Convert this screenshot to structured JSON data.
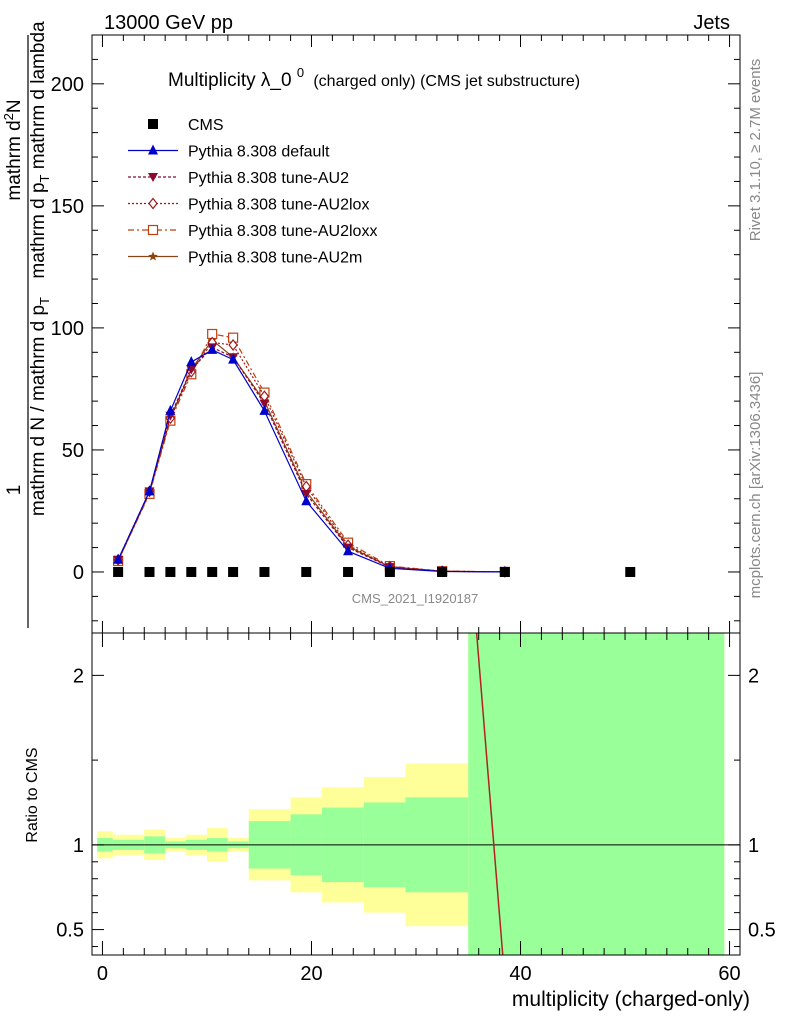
{
  "header": {
    "left": "13000 GeV pp",
    "right": "Jets",
    "rivet": "Rivet 3.1.10, ≥ 2.7M events",
    "mcplots": "mcplots.cern.ch [arXiv:1306.3436]",
    "watermark": "CMS_2021_I1920187"
  },
  "title": {
    "main": "Multiplicity λ_0",
    "sup": "0",
    "suffix": "(charged only) (CMS jet substructure)"
  },
  "ylabel_main": {
    "frac_num": "1",
    "frac_den_prefix": "mathrm d N / mathrm d p",
    "frac_den_sub": "T",
    "num_line1": "mathrm d",
    "num_sup": "2",
    "num_line1b": "N",
    "den_line2": "mathrm d p",
    "den_line2_sub": "T",
    "den_line2_rest": " mathrm d lambda"
  },
  "ylabel_ratio": "Ratio to CMS",
  "xlabel": "multiplicity (charged-only)",
  "legend": [
    {
      "label": "CMS",
      "marker": "square-filled",
      "color": "#000000",
      "dash": ""
    },
    {
      "label": "Pythia 8.308 default",
      "marker": "triangle-up-filled",
      "color": "#0000cc",
      "dash": ""
    },
    {
      "label": "Pythia 8.308 tune-AU2",
      "marker": "triangle-down-filled",
      "color": "#8b0a2e",
      "dash": "3,2"
    },
    {
      "label": "Pythia 8.308 tune-AU2lox",
      "marker": "diamond-open",
      "color": "#a01818",
      "dash": "2,2"
    },
    {
      "label": "Pythia 8.308 tune-AU2loxx",
      "marker": "square-open",
      "color": "#c04010",
      "dash": "6,3,2,3"
    },
    {
      "label": "Pythia 8.308 tune-AU2m",
      "marker": "star",
      "color": "#8b4513",
      "dash": ""
    }
  ],
  "chart_data": {
    "type": "line",
    "main": {
      "xlim": [
        -1,
        61
      ],
      "ylim": [
        -25,
        220
      ],
      "yticks": [
        0,
        50,
        100,
        150,
        200
      ],
      "ytick_labels": [
        "0",
        "50",
        "100",
        "150",
        "200"
      ]
    },
    "ratio": {
      "ylim": [
        0.35,
        2.25
      ],
      "yticks": [
        0.5,
        1,
        2
      ],
      "ytick_labels": [
        "0.5",
        "1",
        "2"
      ],
      "xticks": [
        0,
        20,
        40,
        60
      ],
      "xtick_labels": [
        "0",
        "20",
        "40",
        "60"
      ]
    },
    "x": [
      1.5,
      4.5,
      6.5,
      8.5,
      10.5,
      12.5,
      15.5,
      19.5,
      23.5,
      27.5,
      32.5,
      38.5,
      50.5
    ],
    "series": [
      {
        "name": "CMS",
        "values": [
          0,
          0,
          0,
          0,
          0,
          0,
          0,
          0,
          0,
          0,
          0,
          0,
          0
        ]
      },
      {
        "name": "Pythia 8.308 default",
        "values": [
          5,
          33,
          66,
          86,
          91,
          87,
          66,
          29,
          8.5,
          1.5,
          0.2,
          0.02,
          null
        ]
      },
      {
        "name": "Pythia 8.308 tune-AU2",
        "values": [
          5,
          33,
          64,
          83,
          92,
          88,
          69,
          32,
          10,
          2.0,
          0.3,
          0.03,
          null
        ]
      },
      {
        "name": "Pythia 8.308 tune-AU2lox",
        "values": [
          5,
          33,
          63,
          82,
          94,
          93,
          72,
          35,
          11,
          2.2,
          0.3,
          0.03,
          null
        ]
      },
      {
        "name": "Pythia 8.308 tune-AU2loxx",
        "values": [
          4.5,
          32,
          62,
          81,
          97.5,
          96,
          73.5,
          36,
          12,
          2.4,
          0.35,
          0.04,
          null
        ]
      },
      {
        "name": "Pythia 8.308 tune-AU2m",
        "values": [
          4.5,
          32.5,
          63,
          83,
          95,
          88,
          70,
          33,
          10.5,
          2.1,
          0.3,
          0.03,
          null
        ]
      }
    ],
    "ratio_bands": {
      "edges": [
        -0.5,
        1,
        4,
        6,
        8,
        10,
        12,
        14,
        18,
        21,
        25,
        29,
        35,
        59.5
      ],
      "inner_lo": [
        0.96,
        0.97,
        0.95,
        0.98,
        0.97,
        0.96,
        0.98,
        0.86,
        0.82,
        0.78,
        0.75,
        0.72,
        0.35
      ],
      "inner_hi": [
        1.04,
        1.03,
        1.05,
        1.02,
        1.03,
        1.04,
        1.02,
        1.14,
        1.18,
        1.22,
        1.25,
        1.28,
        2.25
      ],
      "outer_lo": [
        0.92,
        0.94,
        0.91,
        0.96,
        0.94,
        0.9,
        0.96,
        0.79,
        0.72,
        0.66,
        0.6,
        0.52,
        0.35
      ],
      "outer_hi": [
        1.08,
        1.06,
        1.09,
        1.04,
        1.06,
        1.1,
        1.04,
        1.21,
        1.28,
        1.34,
        1.4,
        1.48,
        2.25
      ]
    },
    "ratio_line": {
      "x": [
        35.8,
        38.3
      ],
      "y": [
        2.25,
        0.35
      ]
    }
  }
}
